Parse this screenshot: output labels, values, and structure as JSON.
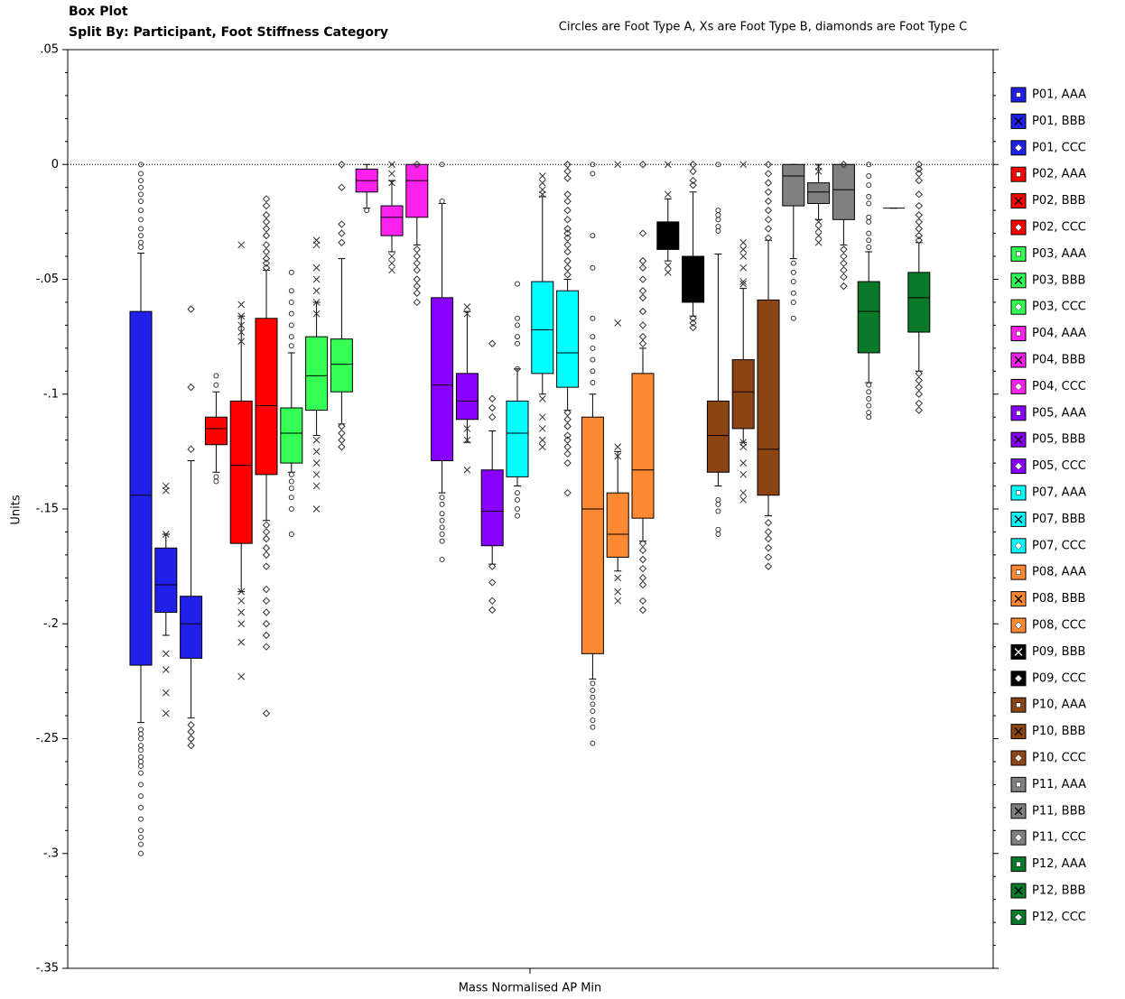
{
  "chart_data": {
    "type": "box",
    "title": "Box Plot",
    "subtitle": "Split By: Participant, Foot Stiffness Category",
    "annotation": "Circles are Foot Type A, Xs are Foot Type B, diamonds are Foot Type C",
    "x_label": "Mass Normalised AP Min",
    "y_label": "Units",
    "ylim": [
      0.05,
      -0.35
    ],
    "yticks": [
      {
        "value": 0.05,
        "label": ".05"
      },
      0,
      {
        "value": -0.05,
        "label": "-.05"
      },
      {
        "value": -0.1,
        "label": "-.1"
      },
      {
        "value": -0.15,
        "label": "-.15"
      },
      {
        "value": -0.2,
        "label": "-.2"
      },
      {
        "value": -0.25,
        "label": "-.25"
      },
      {
        "value": -0.3,
        "label": "-.3"
      },
      {
        "value": -0.35,
        "label": "-.35"
      }
    ],
    "reference_line": 0,
    "legend": "right",
    "series": [
      {
        "name": "P01, AAA",
        "color": "#2020e8",
        "marker": "circle",
        "stats": [
          -0.243,
          -0.218,
          -0.144,
          -0.064,
          -0.0386
        ],
        "outliers": [
          0,
          -0.004,
          -0.007,
          -0.01,
          -0.013,
          -0.016,
          -0.02,
          -0.024,
          -0.028,
          -0.031,
          -0.034,
          -0.036,
          -0.246,
          -0.248,
          -0.25,
          -0.253,
          -0.255,
          -0.258,
          -0.26,
          -0.262,
          -0.265,
          -0.27,
          -0.275,
          -0.28,
          -0.285,
          -0.29,
          -0.293,
          -0.296,
          -0.3
        ]
      },
      {
        "name": "P01, BBB",
        "color": "#2020e8",
        "marker": "x",
        "stats": [
          -0.205,
          -0.195,
          -0.183,
          -0.167,
          -0.161
        ],
        "outliers": [
          -0.14,
          -0.142,
          -0.161,
          -0.213,
          -0.22,
          -0.23,
          -0.239
        ]
      },
      {
        "name": "P01, CCC",
        "color": "#2020e8",
        "marker": "diamond",
        "stats": [
          -0.241,
          -0.215,
          -0.2,
          -0.188,
          -0.129
        ],
        "outliers": [
          -0.063,
          -0.097,
          -0.124,
          -0.244,
          -0.247,
          -0.25,
          -0.253
        ]
      },
      {
        "name": "P02, AAA",
        "color": "#ff0000",
        "marker": "circle",
        "stats": [
          -0.134,
          -0.122,
          -0.115,
          -0.11,
          -0.099
        ],
        "outliers": [
          -0.092,
          -0.096,
          -0.136,
          -0.138
        ]
      },
      {
        "name": "P02, BBB",
        "color": "#ff0000",
        "marker": "x",
        "stats": [
          -0.186,
          -0.165,
          -0.131,
          -0.103,
          -0.066
        ],
        "outliers": [
          -0.035,
          -0.061,
          -0.066,
          -0.07,
          -0.073,
          -0.077,
          -0.186,
          -0.19,
          -0.195,
          -0.2,
          -0.208,
          -0.223
        ]
      },
      {
        "name": "P02, CCC",
        "color": "#ff0000",
        "marker": "diamond",
        "stats": [
          -0.155,
          -0.135,
          -0.105,
          -0.067,
          -0.046
        ],
        "outliers": [
          -0.015,
          -0.018,
          -0.022,
          -0.025,
          -0.028,
          -0.031,
          -0.035,
          -0.038,
          -0.041,
          -0.043,
          -0.045,
          -0.157,
          -0.16,
          -0.163,
          -0.167,
          -0.17,
          -0.175,
          -0.185,
          -0.19,
          -0.195,
          -0.2,
          -0.205,
          -0.21,
          -0.239
        ]
      },
      {
        "name": "P03, AAA",
        "color": "#33ff55",
        "marker": "circle",
        "stats": [
          -0.134,
          -0.13,
          -0.117,
          -0.106,
          -0.082
        ],
        "outliers": [
          -0.047,
          -0.055,
          -0.06,
          -0.065,
          -0.07,
          -0.075,
          -0.079,
          -0.135,
          -0.138,
          -0.141,
          -0.145,
          -0.15,
          -0.161
        ]
      },
      {
        "name": "P03, BBB",
        "color": "#33ff55",
        "marker": "x",
        "stats": [
          -0.118,
          -0.107,
          -0.092,
          -0.075,
          -0.06
        ],
        "outliers": [
          -0.033,
          -0.035,
          -0.045,
          -0.05,
          -0.055,
          -0.06,
          -0.065,
          -0.12,
          -0.125,
          -0.13,
          -0.135,
          -0.14,
          -0.15
        ]
      },
      {
        "name": "P03, CCC",
        "color": "#33ff55",
        "marker": "diamond",
        "stats": [
          -0.113,
          -0.099,
          -0.087,
          -0.076,
          -0.041
        ],
        "outliers": [
          0,
          -0.01,
          -0.026,
          -0.03,
          -0.034,
          -0.114,
          -0.117,
          -0.12,
          -0.123
        ]
      },
      {
        "name": "P04, AAA",
        "color": "#ff22ee",
        "marker": "circle",
        "stats": [
          -0.019,
          -0.012,
          -0.007,
          -0.002,
          0
        ],
        "outliers": [
          -0.02
        ]
      },
      {
        "name": "P04, BBB",
        "color": "#ff22ee",
        "marker": "x",
        "stats": [
          -0.038,
          -0.031,
          -0.023,
          -0.018,
          -0.007
        ],
        "outliers": [
          0,
          -0.004,
          -0.008,
          -0.04,
          -0.043,
          -0.046
        ]
      },
      {
        "name": "P04, CCC",
        "color": "#ff22ee",
        "marker": "diamond",
        "stats": [
          -0.035,
          -0.023,
          -0.007,
          0,
          0
        ],
        "outliers": [
          0,
          -0.037,
          -0.04,
          -0.043,
          -0.046,
          -0.05,
          -0.053,
          -0.056,
          -0.06
        ]
      },
      {
        "name": "P05, AAA",
        "color": "#8800ff",
        "marker": "circle",
        "stats": [
          -0.143,
          -0.129,
          -0.096,
          -0.058,
          -0.017
        ],
        "outliers": [
          0,
          -0.016,
          -0.145,
          -0.148,
          -0.152,
          -0.155,
          -0.158,
          -0.161,
          -0.164,
          -0.172
        ]
      },
      {
        "name": "P05, BBB",
        "color": "#8800ff",
        "marker": "x",
        "stats": [
          -0.121,
          -0.111,
          -0.103,
          -0.091,
          -0.064
        ],
        "outliers": [
          -0.062,
          -0.065,
          -0.115,
          -0.12,
          -0.133
        ]
      },
      {
        "name": "P05, CCC",
        "color": "#8800ff",
        "marker": "diamond",
        "stats": [
          -0.174,
          -0.166,
          -0.151,
          -0.133,
          -0.116
        ],
        "outliers": [
          -0.078,
          -0.102,
          -0.106,
          -0.11,
          -0.175,
          -0.182,
          -0.19,
          -0.194
        ]
      },
      {
        "name": "P07, AAA",
        "color": "#00ffff",
        "marker": "circle",
        "stats": [
          -0.14,
          -0.136,
          -0.117,
          -0.103,
          -0.089
        ],
        "outliers": [
          -0.052,
          -0.067,
          -0.07,
          -0.075,
          -0.078,
          -0.089,
          -0.143,
          -0.146,
          -0.15,
          -0.153
        ]
      },
      {
        "name": "P07, BBB",
        "color": "#00ffff",
        "marker": "x",
        "stats": [
          -0.1,
          -0.091,
          -0.072,
          -0.051,
          -0.014
        ],
        "outliers": [
          -0.005,
          -0.008,
          -0.011,
          -0.013,
          -0.102,
          -0.11,
          -0.115,
          -0.12,
          -0.123
        ]
      },
      {
        "name": "P07, CCC",
        "color": "#00ffff",
        "marker": "diamond",
        "stats": [
          -0.107,
          -0.097,
          -0.082,
          -0.055,
          -0.05
        ],
        "outliers": [
          0,
          -0.003,
          -0.006,
          -0.013,
          -0.016,
          -0.02,
          -0.024,
          -0.028,
          -0.03,
          -0.032,
          -0.035,
          -0.038,
          -0.042,
          -0.045,
          -0.048,
          -0.108,
          -0.111,
          -0.114,
          -0.118,
          -0.12,
          -0.123,
          -0.126,
          -0.13,
          -0.143
        ]
      },
      {
        "name": "P08, AAA",
        "color": "#ff8833",
        "marker": "circle",
        "stats": [
          -0.224,
          -0.213,
          -0.15,
          -0.11,
          -0.1
        ],
        "outliers": [
          0,
          -0.004,
          -0.031,
          -0.045,
          -0.067,
          -0.075,
          -0.08,
          -0.085,
          -0.09,
          -0.095,
          -0.226,
          -0.229,
          -0.232,
          -0.235,
          -0.238,
          -0.242,
          -0.245,
          -0.252
        ]
      },
      {
        "name": "P08, BBB",
        "color": "#ff8833",
        "marker": "x",
        "stats": [
          -0.177,
          -0.171,
          -0.161,
          -0.143,
          -0.125
        ],
        "outliers": [
          0,
          -0.069,
          -0.123,
          -0.127,
          -0.18,
          -0.186,
          -0.19
        ]
      },
      {
        "name": "P08, CCC",
        "color": "#ff8833",
        "marker": "diamond",
        "stats": [
          -0.164,
          -0.154,
          -0.133,
          -0.091,
          -0.08
        ],
        "outliers": [
          0,
          -0.03,
          -0.042,
          -0.045,
          -0.05,
          -0.055,
          -0.058,
          -0.064,
          -0.07,
          -0.075,
          -0.078,
          -0.165,
          -0.168,
          -0.172,
          -0.176,
          -0.18,
          -0.183,
          -0.19,
          -0.194
        ]
      },
      {
        "name": "P09, BBB",
        "color": "#000000",
        "marker": "x",
        "stats": [
          -0.042,
          -0.037,
          -0.032,
          -0.025,
          -0.015
        ],
        "outliers": [
          0,
          -0.013,
          -0.044,
          -0.047
        ]
      },
      {
        "name": "P09, CCC",
        "color": "#000000",
        "marker": "diamond",
        "stats": [
          -0.066,
          -0.06,
          -0.049,
          -0.04,
          -0.012
        ],
        "outliers": [
          0,
          -0.003,
          -0.007,
          -0.009,
          -0.067,
          -0.069,
          -0.071
        ]
      },
      {
        "name": "P10, AAA",
        "color": "#8b4513",
        "marker": "circle",
        "stats": [
          -0.14,
          -0.134,
          -0.118,
          -0.103,
          -0.039
        ],
        "outliers": [
          0,
          -0.02,
          -0.022,
          -0.024,
          -0.027,
          -0.029,
          -0.146,
          -0.148,
          -0.151,
          -0.159,
          -0.161
        ]
      },
      {
        "name": "P10, BBB",
        "color": "#8b4513",
        "marker": "x",
        "stats": [
          -0.121,
          -0.115,
          -0.099,
          -0.085,
          -0.054
        ],
        "outliers": [
          0,
          -0.034,
          -0.037,
          -0.04,
          -0.045,
          -0.051,
          -0.052,
          -0.121,
          -0.123,
          -0.13,
          -0.135,
          -0.143,
          -0.146
        ]
      },
      {
        "name": "P10, CCC",
        "color": "#8b4513",
        "marker": "diamond",
        "stats": [
          -0.153,
          -0.144,
          -0.124,
          -0.059,
          -0.033
        ],
        "outliers": [
          0,
          -0.004,
          -0.008,
          -0.012,
          -0.016,
          -0.02,
          -0.024,
          -0.028,
          -0.032,
          -0.156,
          -0.16,
          -0.163,
          -0.167,
          -0.171,
          -0.175
        ]
      },
      {
        "name": "P11, AAA",
        "color": "#808080",
        "marker": "circle",
        "stats": [
          -0.041,
          -0.018,
          -0.005,
          0,
          0
        ],
        "outliers": [
          -0.043,
          -0.047,
          -0.051,
          -0.056,
          -0.06,
          -0.067
        ]
      },
      {
        "name": "P11, BBB",
        "color": "#808080",
        "marker": "x",
        "stats": [
          -0.024,
          -0.017,
          -0.012,
          -0.008,
          0
        ],
        "outliers": [
          -0.001,
          -0.003,
          -0.025,
          -0.028,
          -0.031,
          -0.034
        ]
      },
      {
        "name": "P11, CCC",
        "color": "#808080",
        "marker": "diamond",
        "stats": [
          -0.035,
          -0.024,
          -0.011,
          0,
          0
        ],
        "outliers": [
          0,
          -0.037,
          -0.04,
          -0.043,
          -0.046,
          -0.049,
          -0.053
        ]
      },
      {
        "name": "P12, AAA",
        "color": "#0a7a2a",
        "marker": "circle",
        "stats": [
          -0.095,
          -0.082,
          -0.064,
          -0.051,
          -0.038
        ],
        "outliers": [
          0,
          -0.005,
          -0.009,
          -0.014,
          -0.017,
          -0.023,
          -0.025,
          -0.03,
          -0.033,
          -0.036,
          -0.096,
          -0.099,
          -0.102,
          -0.105,
          -0.108,
          -0.11
        ]
      },
      {
        "name": "P12, BBB",
        "color": "#0a7a2a",
        "marker": "x",
        "stats": [
          -0.019,
          -0.019,
          -0.019,
          -0.019,
          -0.019
        ],
        "outliers": []
      },
      {
        "name": "P12, CCC",
        "color": "#0a7a2a",
        "marker": "diamond",
        "stats": [
          -0.09,
          -0.073,
          -0.058,
          -0.047,
          -0.034
        ],
        "outliers": [
          0,
          -0.002,
          -0.004,
          -0.007,
          -0.013,
          -0.018,
          -0.022,
          -0.025,
          -0.028,
          -0.031,
          -0.033,
          -0.091,
          -0.094,
          -0.097,
          -0.1,
          -0.104,
          -0.107
        ]
      }
    ]
  }
}
